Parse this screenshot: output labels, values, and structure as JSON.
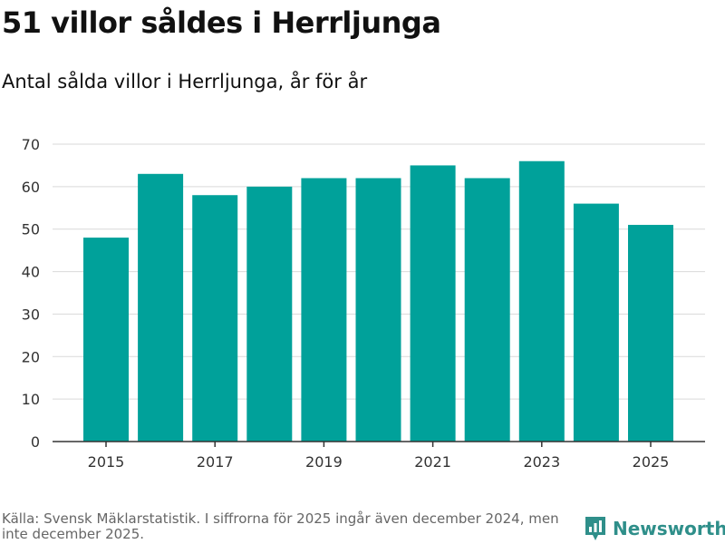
{
  "chart_data": {
    "type": "bar",
    "title": "51 villor såldes i Herrljunga",
    "subtitle": "Antal sålda villor i Herrljunga, år för år",
    "categories": [
      "2015",
      "2016",
      "2017",
      "2018",
      "2019",
      "2020",
      "2021",
      "2022",
      "2023",
      "2024",
      "2025"
    ],
    "tick_labels_x": [
      "2015",
      "2017",
      "2019",
      "2021",
      "2023",
      "2025"
    ],
    "values": [
      48,
      63,
      58,
      60,
      62,
      62,
      65,
      62,
      66,
      56,
      51
    ],
    "yticks": [
      0,
      10,
      20,
      30,
      40,
      50,
      60,
      70
    ],
    "ylim": [
      0,
      70
    ],
    "xlabel": "",
    "ylabel": "",
    "grid": true,
    "bar_color": "#00a19a"
  },
  "footer": {
    "source": "Källa: Svensk Mäklarstatistik. I siffrorna för 2025 ingår även december 2024, men inte december 2025.",
    "brand": "Newsworthy",
    "brand_icon": "newsworthy-logo-icon"
  }
}
